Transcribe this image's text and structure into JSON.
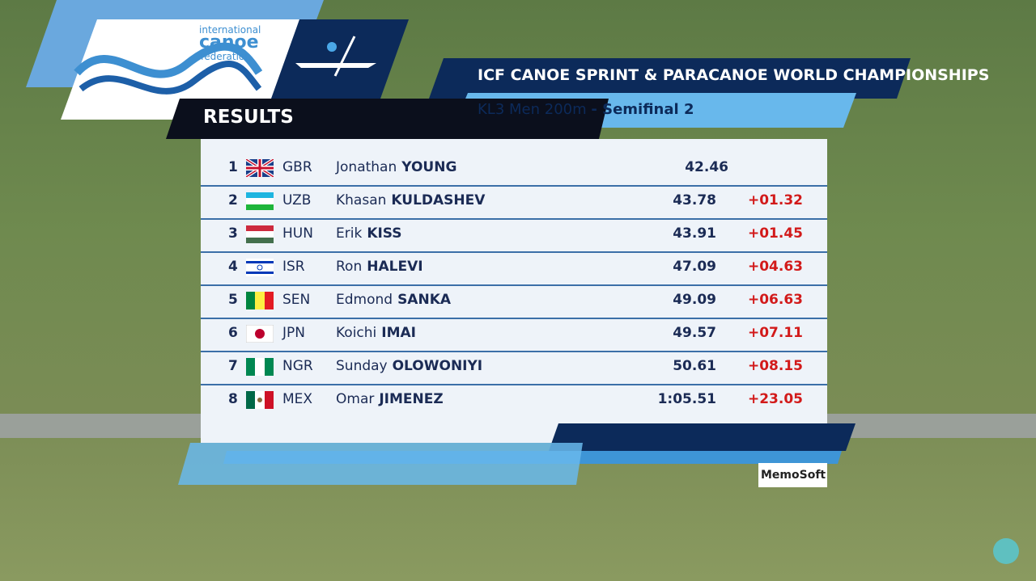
{
  "logo": {
    "line1": "international",
    "line2": "canoe",
    "line3": "federation"
  },
  "header": {
    "title": "ICF CANOE SPRINT & PARACANOE WORLD CHAMPIONSHIPS",
    "event": "KL3 Men 200m",
    "phase": "- Semifinal 2",
    "label": "RESULTS"
  },
  "table": {
    "rows": [
      {
        "rank": "1",
        "country": "GBR",
        "first": "Jonathan",
        "last": "YOUNG",
        "time": "42.46"
      },
      {
        "rank": "2",
        "country": "UZB",
        "first": "Khasan",
        "last": "KULDASHEV",
        "time": "43.78",
        "diff": "+01.32"
      },
      {
        "rank": "3",
        "country": "HUN",
        "first": "Erik",
        "last": "KISS",
        "time": "43.91",
        "diff": "+01.45"
      },
      {
        "rank": "4",
        "country": "ISR",
        "first": "Ron",
        "last": "HALEVI",
        "time": "47.09",
        "diff": "+04.63"
      },
      {
        "rank": "5",
        "country": "SEN",
        "first": "Edmond",
        "last": "SANKA",
        "time": "49.09",
        "diff": "+06.63"
      },
      {
        "rank": "6",
        "country": "JPN",
        "first": "Koichi",
        "last": "IMAI",
        "time": "49.57",
        "diff": "+07.11"
      },
      {
        "rank": "7",
        "country": "NGR",
        "first": "Sunday",
        "last": "OLOWONIYI",
        "time": "50.61",
        "diff": "+08.15"
      },
      {
        "rank": "8",
        "country": "MEX",
        "first": "Omar",
        "last": "JIMENEZ",
        "time": "1:05.51",
        "diff": "+23.05"
      }
    ]
  },
  "sponsor": "MemoSoft"
}
